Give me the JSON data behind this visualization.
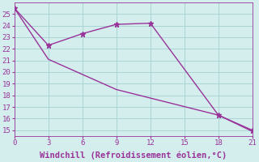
{
  "line1_x": [
    0,
    3,
    6,
    9,
    12,
    18,
    21
  ],
  "line1_y": [
    25.5,
    22.3,
    23.3,
    24.1,
    24.2,
    16.3,
    15.0
  ],
  "line2_x": [
    0,
    3,
    9,
    18,
    21
  ],
  "line2_y": [
    25.5,
    21.1,
    18.5,
    16.3,
    14.9
  ],
  "color": "#993399",
  "xlabel": "Windchill (Refroidissement éolien,°C)",
  "xlim": [
    0,
    21
  ],
  "ylim": [
    14.5,
    26
  ],
  "yticks": [
    15,
    16,
    17,
    18,
    19,
    20,
    21,
    22,
    23,
    24,
    25
  ],
  "xticks": [
    0,
    3,
    6,
    9,
    12,
    15,
    18,
    21
  ],
  "bg_color": "#d4eeee",
  "grid_color": "#aad4d4",
  "marker": "*",
  "markersize": 5,
  "linewidth": 1.0,
  "xlabel_fontsize": 7.5,
  "tick_fontsize": 6.5
}
